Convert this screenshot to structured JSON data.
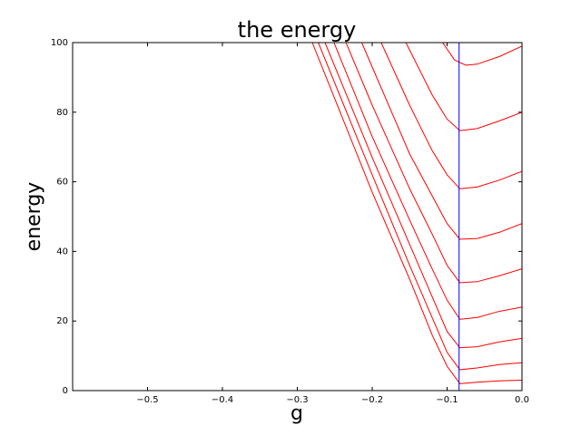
{
  "chart_data": {
    "type": "line",
    "title": "the energy",
    "xlabel": "g",
    "ylabel": "energy",
    "xlim": [
      -0.6,
      0
    ],
    "ylim": [
      0,
      100
    ],
    "xticks": [
      {
        "value": -0.5,
        "label": "−0.5"
      },
      {
        "value": -0.4,
        "label": "−0.4"
      },
      {
        "value": -0.3,
        "label": "−0.3"
      },
      {
        "value": -0.2,
        "label": "−0.2"
      },
      {
        "value": -0.1,
        "label": "−0.1"
      },
      {
        "value": 0,
        "label": "0.0"
      }
    ],
    "yticks": [
      0,
      20,
      40,
      60,
      80,
      100
    ],
    "vline": {
      "x": -0.084,
      "color": "#0000ff"
    },
    "series": [
      {
        "color": "#ff0000",
        "x": [
          -0.28,
          -0.2,
          -0.15,
          -0.12,
          -0.1,
          -0.083,
          -0.06,
          -0.03,
          0
        ],
        "values": [
          100,
          57,
          32,
          16,
          7,
          2,
          2.4,
          2.8,
          3
        ]
      },
      {
        "color": "#ff0000",
        "x": [
          -0.272,
          -0.2,
          -0.15,
          -0.12,
          -0.1,
          -0.083,
          -0.06,
          -0.03,
          0
        ],
        "values": [
          100,
          62,
          36,
          21,
          11,
          6,
          6.5,
          7.5,
          8
        ]
      },
      {
        "color": "#ff0000",
        "x": [
          -0.263,
          -0.2,
          -0.15,
          -0.12,
          -0.1,
          -0.083,
          -0.06,
          -0.03,
          0
        ],
        "values": [
          100,
          67,
          42,
          27,
          17,
          12.3,
          12.6,
          14,
          15
        ]
      },
      {
        "color": "#ff0000",
        "x": [
          -0.251,
          -0.2,
          -0.15,
          -0.12,
          -0.1,
          -0.083,
          -0.06,
          -0.03,
          0
        ],
        "values": [
          100,
          73,
          49,
          35,
          26,
          20.5,
          21,
          22.8,
          24
        ]
      },
      {
        "color": "#ff0000",
        "x": [
          -0.235,
          -0.2,
          -0.15,
          -0.12,
          -0.1,
          -0.083,
          -0.06,
          -0.03,
          0
        ],
        "values": [
          100,
          82,
          58,
          45,
          36,
          31,
          31.3,
          33,
          35
        ]
      },
      {
        "color": "#ff0000",
        "x": [
          -0.214,
          -0.2,
          -0.15,
          -0.12,
          -0.1,
          -0.083,
          -0.06,
          -0.03,
          0
        ],
        "values": [
          100,
          93,
          68,
          56,
          48,
          43.5,
          43.7,
          45.5,
          48
        ]
      },
      {
        "color": "#ff0000",
        "x": [
          -0.188,
          -0.15,
          -0.12,
          -0.1,
          -0.083,
          -0.06,
          -0.03,
          0
        ],
        "values": [
          100,
          82,
          69,
          62,
          58,
          58.5,
          60.5,
          63
        ]
      },
      {
        "color": "#ff0000",
        "x": [
          -0.155,
          -0.12,
          -0.1,
          -0.083,
          -0.06,
          -0.03,
          0
        ],
        "values": [
          100,
          85,
          78,
          74.7,
          75.3,
          77.5,
          80
        ]
      },
      {
        "color": "#ff0000",
        "x": [
          -0.106,
          -0.09,
          -0.075,
          -0.06,
          -0.03,
          0
        ],
        "values": [
          100,
          95,
          93.5,
          93.8,
          96,
          99
        ]
      }
    ]
  }
}
